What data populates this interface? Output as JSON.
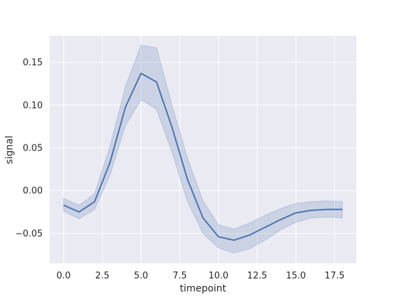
{
  "chart_data": {
    "type": "line",
    "title": "",
    "xlabel": "timepoint",
    "ylabel": "signal",
    "xlim": [
      -0.9,
      18.9
    ],
    "ylim": [
      -0.085,
      0.181
    ],
    "xticks": [
      "0.0",
      "2.5",
      "5.0",
      "7.5",
      "10.0",
      "12.5",
      "15.0",
      "17.5"
    ],
    "xtick_values": [
      0,
      2.5,
      5,
      7.5,
      10,
      12.5,
      15,
      17.5
    ],
    "yticks": [
      "−0.05",
      "0.00",
      "0.05",
      "0.10",
      "0.15"
    ],
    "ytick_values": [
      -0.05,
      0,
      0.05,
      0.1,
      0.15
    ],
    "grid": true,
    "colors": {
      "background": "#eaeaf2",
      "grid": "#ffffff",
      "line": "#4c72b0",
      "band": "#4c72b0"
    },
    "series": [
      {
        "x": [
          0,
          1,
          2,
          3,
          4,
          5,
          6,
          7,
          8,
          9,
          10,
          11,
          12,
          13,
          14,
          15,
          16,
          17,
          18
        ],
        "y": [
          -0.017,
          -0.025,
          -0.013,
          0.033,
          0.098,
          0.137,
          0.127,
          0.074,
          0.013,
          -0.032,
          -0.054,
          -0.058,
          -0.052,
          -0.043,
          -0.034,
          -0.026,
          -0.023,
          -0.022,
          -0.022
        ],
        "ci_low": [
          -0.024,
          -0.033,
          -0.022,
          0.018,
          0.076,
          0.106,
          0.095,
          0.045,
          -0.013,
          -0.05,
          -0.067,
          -0.073,
          -0.068,
          -0.058,
          -0.046,
          -0.037,
          -0.032,
          -0.031,
          -0.032
        ],
        "ci_high": [
          -0.009,
          -0.017,
          -0.004,
          0.052,
          0.122,
          0.17,
          0.167,
          0.1,
          0.038,
          -0.012,
          -0.04,
          -0.045,
          -0.038,
          -0.029,
          -0.021,
          -0.015,
          -0.013,
          -0.012,
          -0.013
        ]
      }
    ]
  }
}
